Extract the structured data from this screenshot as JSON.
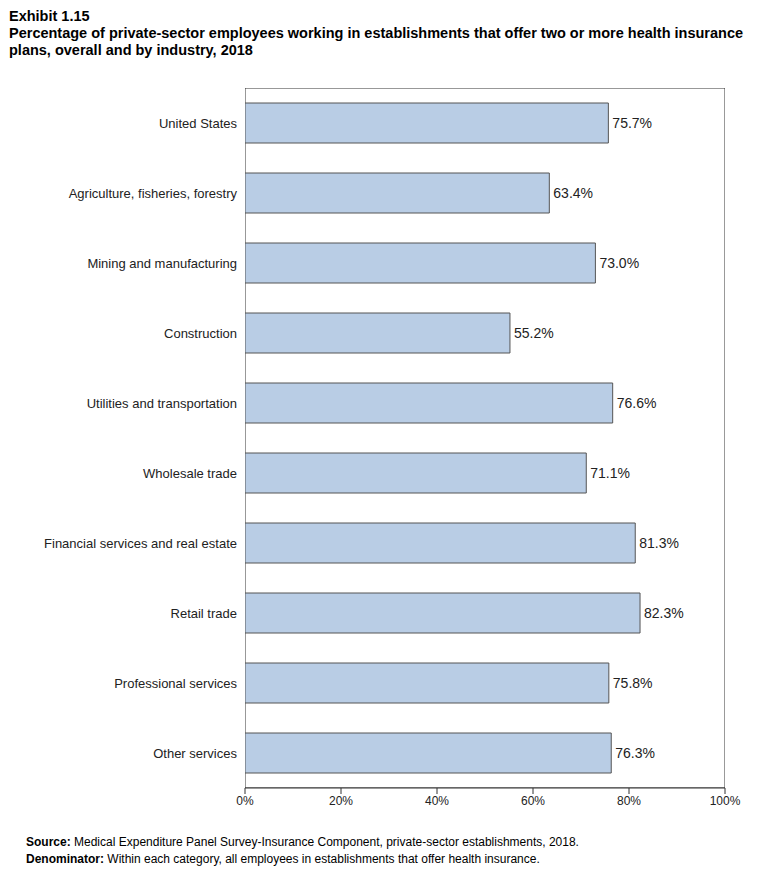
{
  "chart_data": {
    "type": "bar",
    "orientation": "horizontal",
    "title": "Exhibit 1.15",
    "subtitle": "Percentage of private-sector employees working in establishments that offer two or more health insurance plans, overall and by industry, 2018",
    "categories": [
      "United States",
      "Agriculture, fisheries, forestry",
      "Mining and manufacturing",
      "Construction",
      "Utilities and transportation",
      "Wholesale trade",
      "Financial services and real estate",
      "Retail trade",
      "Professional services",
      "Other services"
    ],
    "values": [
      75.7,
      63.4,
      73.0,
      55.2,
      76.6,
      71.1,
      81.3,
      82.3,
      75.8,
      76.3
    ],
    "value_labels": [
      "75.7%",
      "63.4%",
      "73.0%",
      "55.2%",
      "76.6%",
      "71.1%",
      "81.3%",
      "82.3%",
      "75.8%",
      "76.3%"
    ],
    "data_labels": true,
    "color": "#b9cde5",
    "xlim": [
      0,
      100
    ],
    "xticks": [
      {
        "value": 0,
        "label": "0%"
      },
      {
        "value": 20,
        "label": "20%"
      },
      {
        "value": 40,
        "label": "40%"
      },
      {
        "value": 60,
        "label": "60%"
      },
      {
        "value": 80,
        "label": "80%"
      },
      {
        "value": 100,
        "label": "100%"
      }
    ],
    "grid": false,
    "annotations": [
      "Source: Medical Expenditure Panel Survey-Insurance Component, private-sector establishments, 2018.",
      "Denominator: Within each category, all employees in establishments that offer health insurance."
    ]
  }
}
